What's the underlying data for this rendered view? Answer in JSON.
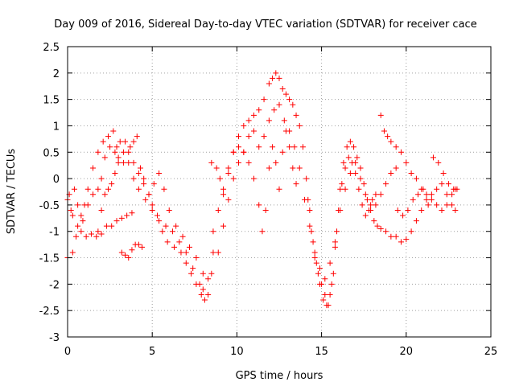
{
  "chart_data": {
    "type": "scatter",
    "title": "Day 009 of 2016, Sidereal Day-to-day VTEC variation (SDTVAR) for receiver cace",
    "xlabel": "GPS time / hours",
    "ylabel": "SDTVAR / TECUs",
    "xlim": [
      0,
      25
    ],
    "ylim": [
      -3,
      2.5
    ],
    "xticks": [
      0,
      5,
      10,
      15,
      20,
      25
    ],
    "yticks": [
      -3,
      -2.5,
      -2,
      -1.5,
      -1,
      -0.5,
      0,
      0.5,
      1,
      1.5,
      2,
      2.5
    ],
    "grid": true,
    "legend": "none",
    "marker": "plus",
    "color": "#ff0000",
    "series": [
      {
        "points": [
          [
            0.0,
            -0.4
          ],
          [
            0.2,
            -0.6
          ],
          [
            0.4,
            -0.2
          ],
          [
            0.6,
            -0.5
          ],
          [
            0.8,
            -0.7
          ],
          [
            1.0,
            -0.5
          ],
          [
            1.2,
            -0.2
          ],
          [
            1.5,
            0.2
          ],
          [
            1.8,
            0.5
          ],
          [
            2.1,
            0.7
          ],
          [
            2.4,
            0.8
          ],
          [
            2.7,
            0.9
          ],
          [
            2.9,
            0.6
          ],
          [
            3.1,
            0.7
          ],
          [
            3.4,
            0.7
          ],
          [
            3.7,
            0.6
          ],
          [
            3.9,
            0.7
          ],
          [
            4.1,
            0.8
          ],
          [
            4.3,
            0.2
          ],
          [
            4.5,
            -0.1
          ],
          [
            4.8,
            -0.3
          ],
          [
            5.0,
            -0.5
          ],
          [
            5.3,
            -0.7
          ],
          [
            5.6,
            -1.0
          ],
          [
            5.9,
            -1.2
          ],
          [
            6.3,
            -1.3
          ],
          [
            6.7,
            -1.4
          ],
          [
            7.0,
            -1.6
          ],
          [
            7.3,
            -1.8
          ],
          [
            7.6,
            -2.0
          ],
          [
            7.9,
            -2.2
          ],
          [
            8.1,
            -2.3
          ],
          [
            8.3,
            -2.2
          ],
          [
            8.5,
            -1.8
          ],
          [
            8.6,
            -1.4
          ]
        ]
      },
      {
        "points": [
          [
            0.0,
            -1.5
          ],
          [
            0.3,
            -1.4
          ],
          [
            0.5,
            -1.1
          ],
          [
            0.8,
            -1.0
          ],
          [
            1.1,
            -1.1
          ],
          [
            1.4,
            -1.05
          ],
          [
            1.7,
            -1.1
          ],
          [
            2.0,
            -1.05
          ],
          [
            2.3,
            -0.9
          ],
          [
            2.6,
            -0.9
          ],
          [
            2.9,
            -0.8
          ],
          [
            3.2,
            -0.75
          ],
          [
            3.5,
            -0.7
          ],
          [
            3.8,
            -0.65
          ]
        ]
      },
      {
        "points": [
          [
            0.1,
            -0.3
          ],
          [
            0.3,
            -0.7
          ],
          [
            0.6,
            -0.9
          ],
          [
            0.9,
            -0.8
          ],
          [
            1.2,
            -0.5
          ],
          [
            1.5,
            -0.3
          ],
          [
            1.8,
            -0.2
          ],
          [
            2.0,
            0.0
          ],
          [
            2.2,
            0.4
          ],
          [
            2.5,
            0.6
          ],
          [
            2.8,
            0.5
          ],
          [
            3.0,
            0.4
          ],
          [
            3.3,
            0.3
          ],
          [
            3.6,
            0.5
          ],
          [
            3.9,
            0.3
          ],
          [
            4.2,
            0.1
          ],
          [
            4.5,
            0.0
          ],
          [
            4.8,
            -0.3
          ],
          [
            5.1,
            -0.1
          ],
          [
            5.4,
            0.1
          ],
          [
            5.7,
            -0.2
          ],
          [
            6.0,
            -0.6
          ],
          [
            6.4,
            -0.9
          ],
          [
            6.8,
            -1.1
          ],
          [
            7.2,
            -1.3
          ],
          [
            7.6,
            -1.5
          ],
          [
            8.0,
            -1.8
          ],
          [
            8.3,
            -1.9
          ]
        ]
      },
      {
        "points": [
          [
            1.8,
            -1.0
          ],
          [
            2.0,
            -0.6
          ],
          [
            2.2,
            -0.3
          ],
          [
            2.4,
            -0.2
          ],
          [
            2.6,
            -0.1
          ],
          [
            2.8,
            0.1
          ],
          [
            3.0,
            0.3
          ],
          [
            3.3,
            0.5
          ],
          [
            3.6,
            0.3
          ],
          [
            3.9,
            0.0
          ],
          [
            4.2,
            -0.2
          ],
          [
            4.6,
            -0.4
          ],
          [
            5.0,
            -0.6
          ],
          [
            5.4,
            -0.8
          ],
          [
            5.8,
            -0.9
          ],
          [
            6.2,
            -1.0
          ],
          [
            6.6,
            -1.2
          ],
          [
            7.0,
            -1.4
          ],
          [
            7.4,
            -1.7
          ],
          [
            7.8,
            -2.0
          ],
          [
            8.0,
            -2.1
          ]
        ]
      },
      {
        "points": [
          [
            3.2,
            -1.4
          ],
          [
            3.4,
            -1.45
          ],
          [
            3.6,
            -1.5
          ],
          [
            3.8,
            -1.35
          ],
          [
            4.0,
            -1.25
          ],
          [
            4.2,
            -1.25
          ],
          [
            4.4,
            -1.3
          ]
        ]
      },
      {
        "points": [
          [
            8.6,
            -1.0
          ],
          [
            8.9,
            -0.6
          ],
          [
            9.2,
            -0.3
          ],
          [
            9.5,
            0.1
          ],
          [
            9.8,
            0.5
          ],
          [
            10.1,
            0.8
          ],
          [
            10.4,
            1.0
          ],
          [
            10.7,
            1.1
          ],
          [
            11.0,
            1.2
          ],
          [
            11.3,
            1.3
          ],
          [
            11.6,
            1.5
          ],
          [
            11.9,
            1.8
          ],
          [
            12.1,
            1.9
          ],
          [
            12.3,
            2.0
          ],
          [
            12.5,
            1.9
          ],
          [
            12.7,
            1.7
          ],
          [
            12.9,
            1.6
          ],
          [
            13.1,
            1.5
          ],
          [
            13.3,
            1.4
          ],
          [
            13.5,
            1.2
          ],
          [
            13.7,
            1.0
          ],
          [
            13.9,
            0.6
          ],
          [
            14.1,
            0.0
          ],
          [
            14.3,
            -0.6
          ],
          [
            14.5,
            -1.2
          ],
          [
            14.7,
            -1.6
          ],
          [
            14.9,
            -2.0
          ],
          [
            15.1,
            -2.3
          ],
          [
            15.3,
            -2.4
          ],
          [
            15.5,
            -2.2
          ],
          [
            15.7,
            -1.8
          ],
          [
            15.9,
            -1.0
          ],
          [
            16.1,
            -0.2
          ],
          [
            16.3,
            0.3
          ],
          [
            16.5,
            0.6
          ],
          [
            16.7,
            0.7
          ],
          [
            16.9,
            0.6
          ],
          [
            17.1,
            0.4
          ],
          [
            17.3,
            0.2
          ],
          [
            17.5,
            -0.1
          ],
          [
            17.7,
            -0.4
          ],
          [
            17.9,
            -0.6
          ],
          [
            18.1,
            -0.8
          ],
          [
            18.3,
            -0.9
          ],
          [
            18.5,
            -0.95
          ],
          [
            18.8,
            -1.0
          ],
          [
            19.1,
            -1.1
          ],
          [
            19.4,
            -1.1
          ],
          [
            19.7,
            -1.2
          ],
          [
            20.0,
            -1.15
          ],
          [
            20.3,
            -1.0
          ],
          [
            20.6,
            -0.8
          ],
          [
            20.9,
            -0.6
          ],
          [
            21.2,
            -0.4
          ],
          [
            21.5,
            -0.3
          ],
          [
            21.8,
            -0.2
          ],
          [
            22.1,
            -0.1
          ],
          [
            22.4,
            -0.3
          ],
          [
            22.7,
            -0.5
          ],
          [
            22.9,
            -0.6
          ]
        ]
      },
      {
        "points": [
          [
            8.9,
            -1.4
          ],
          [
            9.2,
            -0.9
          ],
          [
            9.5,
            -0.4
          ],
          [
            9.8,
            0.0
          ],
          [
            10.1,
            0.3
          ],
          [
            10.4,
            0.5
          ],
          [
            10.7,
            0.8
          ],
          [
            11.0,
            0.9
          ],
          [
            11.3,
            0.6
          ],
          [
            11.6,
            0.8
          ],
          [
            11.9,
            1.1
          ],
          [
            12.2,
            1.3
          ],
          [
            12.5,
            1.4
          ],
          [
            12.8,
            1.1
          ],
          [
            13.1,
            0.9
          ],
          [
            13.4,
            0.6
          ],
          [
            13.7,
            0.2
          ],
          [
            14.0,
            -0.4
          ],
          [
            14.3,
            -0.9
          ],
          [
            14.6,
            -1.4
          ],
          [
            14.9,
            -1.7
          ],
          [
            15.2,
            -1.9
          ],
          [
            15.5,
            -1.6
          ],
          [
            15.8,
            -1.2
          ],
          [
            16.1,
            -0.6
          ],
          [
            16.4,
            -0.2
          ],
          [
            16.7,
            0.1
          ],
          [
            17.0,
            0.3
          ],
          [
            17.3,
            0.0
          ],
          [
            17.6,
            -0.3
          ],
          [
            17.9,
            -0.5
          ],
          [
            18.2,
            -0.5
          ],
          [
            18.5,
            -0.3
          ],
          [
            18.8,
            -0.1
          ],
          [
            19.1,
            0.1
          ],
          [
            19.4,
            0.2
          ]
        ]
      },
      {
        "points": [
          [
            8.5,
            0.3
          ],
          [
            8.8,
            0.2
          ],
          [
            9.0,
            0.0
          ],
          [
            9.2,
            -0.2
          ],
          [
            9.5,
            0.2
          ],
          [
            9.8,
            0.5
          ],
          [
            10.1,
            0.6
          ],
          [
            10.4,
            0.5
          ],
          [
            10.7,
            0.3
          ],
          [
            11.0,
            0.0
          ],
          [
            11.3,
            -0.5
          ],
          [
            11.5,
            -1.0
          ],
          [
            11.7,
            -0.6
          ],
          [
            11.9,
            0.2
          ],
          [
            12.1,
            0.6
          ],
          [
            12.3,
            0.3
          ],
          [
            12.5,
            -0.2
          ],
          [
            12.7,
            0.5
          ],
          [
            12.9,
            0.9
          ],
          [
            13.1,
            0.6
          ],
          [
            13.3,
            0.2
          ],
          [
            13.5,
            -0.1
          ]
        ]
      },
      {
        "points": [
          [
            14.2,
            -0.4
          ],
          [
            14.4,
            -1.0
          ],
          [
            14.6,
            -1.5
          ],
          [
            14.8,
            -1.8
          ],
          [
            15.0,
            -2.0
          ],
          [
            15.2,
            -2.2
          ],
          [
            15.4,
            -2.4
          ],
          [
            15.6,
            -2.0
          ],
          [
            15.8,
            -1.3
          ],
          [
            16.0,
            -0.6
          ],
          [
            16.2,
            -0.1
          ],
          [
            16.4,
            0.2
          ],
          [
            16.6,
            0.4
          ],
          [
            16.8,
            0.3
          ],
          [
            17.0,
            0.1
          ],
          [
            17.2,
            -0.2
          ],
          [
            17.4,
            -0.5
          ],
          [
            17.6,
            -0.7
          ],
          [
            17.8,
            -0.6
          ],
          [
            18.0,
            -0.4
          ],
          [
            18.2,
            -0.3
          ]
        ]
      },
      {
        "points": [
          [
            18.5,
            1.2
          ],
          [
            18.7,
            0.9
          ],
          [
            18.9,
            0.8
          ],
          [
            19.1,
            0.7
          ],
          [
            19.4,
            0.6
          ],
          [
            19.7,
            0.5
          ],
          [
            20.0,
            0.3
          ],
          [
            20.3,
            0.1
          ],
          [
            20.6,
            0.0
          ],
          [
            20.9,
            -0.2
          ],
          [
            21.2,
            -0.3
          ],
          [
            21.5,
            -0.4
          ],
          [
            21.8,
            -0.5
          ],
          [
            22.1,
            -0.6
          ],
          [
            22.4,
            -0.5
          ],
          [
            22.7,
            -0.3
          ],
          [
            22.9,
            -0.2
          ]
        ]
      },
      {
        "points": [
          [
            19.5,
            -0.6
          ],
          [
            19.8,
            -0.7
          ],
          [
            20.1,
            -0.6
          ],
          [
            20.4,
            -0.4
          ],
          [
            20.7,
            -0.3
          ],
          [
            21.0,
            -0.2
          ],
          [
            21.3,
            -0.5
          ],
          [
            21.6,
            0.4
          ],
          [
            21.9,
            0.3
          ],
          [
            22.2,
            0.1
          ],
          [
            22.5,
            -0.1
          ],
          [
            22.8,
            -0.2
          ],
          [
            23.0,
            -0.2
          ]
        ]
      }
    ]
  }
}
